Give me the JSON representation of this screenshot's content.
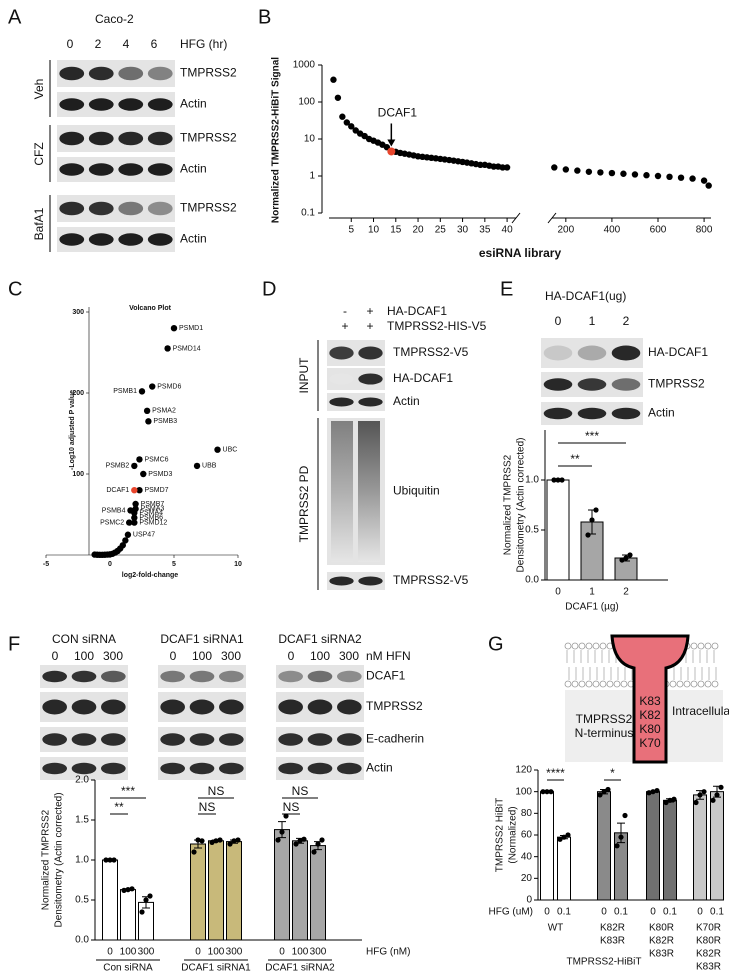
{
  "panel_letters": [
    "A",
    "B",
    "C",
    "D",
    "E",
    "F",
    "G"
  ],
  "blots": {
    "A": {
      "cell_line": "Caco-2",
      "treatment": "HFG (hr)",
      "lanes": [
        "0",
        "2",
        "4",
        "6"
      ],
      "groups": [
        {
          "name": "Veh",
          "rows": [
            "TMPRSS2",
            "Actin"
          ]
        },
        {
          "name": "CFZ",
          "rows": [
            "TMPRSS2",
            "Actin"
          ]
        },
        {
          "name": "BafA1",
          "rows": [
            "TMPRSS2",
            "Actin"
          ]
        }
      ]
    },
    "D": {
      "header": [
        {
          "label": "HA-DCAF1",
          "lanes": [
            "-",
            "+"
          ]
        },
        {
          "label": "TMPRSS2-HIS-V5",
          "lanes": [
            "+",
            "+"
          ]
        }
      ],
      "sections": [
        {
          "name": "INPUT",
          "rows": [
            "TMPRSS2-V5",
            "HA-DCAF1",
            "Actin"
          ]
        },
        {
          "name": "TMPRSS2 PD",
          "rows": [
            "Ubiquitin",
            "TMPRSS2-V5"
          ]
        }
      ]
    },
    "E": {
      "title": "HA-DCAF1(ug)",
      "lanes": [
        "0",
        "1",
        "2"
      ],
      "rows": [
        "HA-DCAF1",
        "TMPRSS2",
        "Actin"
      ]
    },
    "F": {
      "groups": [
        "CON siRNA",
        "DCAF1 siRNA1",
        "DCAF1 siRNA2"
      ],
      "lanes": [
        [
          "0",
          "100",
          "300"
        ],
        [
          "0",
          "100",
          "300"
        ],
        [
          "0",
          "100",
          "300"
        ]
      ],
      "unit": "nM HFN",
      "rows": [
        "DCAF1",
        "TMPRSS2",
        "E-cadherin",
        "Actin"
      ]
    }
  },
  "diagram": {
    "residues": [
      "K83",
      "K82",
      "K80",
      "K70"
    ],
    "intracellular": "Intracellular",
    "n_terminus": [
      "TMPRSS2",
      "N-terminus"
    ]
  },
  "chart_data": [
    {
      "type": "scatter",
      "ylabel": "Normalized TMPRSS2-HiBiT Signal",
      "xlabel": "esiRNA library",
      "log_y": true,
      "ylim": [
        0.1,
        1000
      ],
      "yticks": [
        0.1,
        1,
        10,
        100,
        1000
      ],
      "xlim_segments": [
        [
          0,
          42
        ],
        [
          140,
          830
        ]
      ],
      "xticks": [
        5,
        10,
        15,
        20,
        25,
        30,
        35,
        40,
        200,
        400,
        600,
        800
      ],
      "series": [
        {
          "color": "#000000",
          "x": [
            1,
            2,
            3,
            4,
            5,
            6,
            7,
            8,
            9,
            10,
            11,
            12,
            13,
            15,
            16,
            17,
            18,
            19,
            20,
            21,
            22,
            23,
            24,
            25,
            26,
            27,
            28,
            29,
            30,
            31,
            32,
            33,
            34,
            35,
            36,
            37,
            38,
            39,
            40,
            150,
            200,
            250,
            300,
            350,
            400,
            450,
            500,
            550,
            600,
            650,
            700,
            750,
            800,
            820
          ],
          "values": [
            400,
            130,
            40,
            28,
            22,
            17,
            14,
            12,
            10,
            9,
            8,
            7,
            6,
            4.5,
            4.2,
            4,
            3.8,
            3.6,
            3.4,
            3.3,
            3.2,
            3.1,
            3,
            2.9,
            2.8,
            2.7,
            2.6,
            2.5,
            2.4,
            2.3,
            2.2,
            2.1,
            2,
            2,
            1.9,
            1.8,
            1.8,
            1.7,
            1.7,
            1.7,
            1.5,
            1.4,
            1.3,
            1.25,
            1.2,
            1.15,
            1.1,
            1.05,
            1,
            0.95,
            0.9,
            0.85,
            0.75,
            0.55
          ]
        },
        {
          "name": "DCAF1",
          "color": "#e8452c",
          "x": [
            14
          ],
          "values": [
            4.6
          ]
        }
      ]
    },
    {
      "type": "volcano",
      "title": "Volcano Plot",
      "ylabel": "-Log10 adjusted P value",
      "xlabel": "log2-fold-change",
      "xlim": [
        -5,
        10
      ],
      "xticks": [
        -5,
        0,
        5,
        10
      ],
      "ylim": [
        0,
        300
      ],
      "yticks": [
        100,
        200,
        300
      ],
      "series": [
        {
          "color": "#000000",
          "x": [
            5.0,
            4.5,
            3.3,
            2.5,
            2.9,
            3.0,
            8.4,
            2.3,
            6.8,
            1.9,
            2.6,
            2.3,
            2.0,
            2.0,
            1.9,
            1.6,
            1.9,
            1.5,
            1.9,
            1.4,
            -1.2,
            -1.0,
            -0.8,
            -0.6,
            -0.4,
            -0.2,
            0,
            0.2,
            0.4,
            0.6,
            0.8,
            1.0,
            1.2
          ],
          "values": [
            280,
            255,
            208,
            202,
            178,
            165,
            130,
            118,
            110,
            110,
            100,
            80,
            63,
            57,
            52,
            55,
            46,
            40,
            40,
            25,
            0.5,
            0.3,
            0.2,
            0.2,
            0.3,
            0.5,
            0.8,
            1.5,
            3,
            5,
            8,
            12,
            18
          ],
          "labels": [
            "PSMD1",
            "PSMD14",
            "PSMD6",
            "PSMB1",
            "PSMA2",
            "PSMB3",
            "UBC",
            "PSMC6",
            "UBB",
            "PSMB2",
            "PSMD3",
            "PSMD7",
            "PSMB7",
            "PSMA3",
            "PSMA4",
            "PSMB4",
            "PSMB6",
            "PSMC2",
            "PSMD12",
            "USP47",
            null,
            null,
            null,
            null,
            null,
            null,
            null,
            null,
            null,
            null,
            null,
            null,
            null
          ]
        },
        {
          "name": "DCAF1",
          "color": "#e8452c",
          "x": [
            1.9
          ],
          "values": [
            80
          ]
        }
      ]
    },
    {
      "type": "bar",
      "ylabel": [
        "Normalized TMPRSS2",
        "Densitometry (Actin corrected)"
      ],
      "xlabel": "DCAF1 (µg)",
      "ylim": [
        0,
        1.5
      ],
      "yticks": [
        {
          "value": 0,
          "label": "0.0"
        },
        0.5,
        {
          "value": 1,
          "label": "1.0"
        }
      ],
      "categories": [
        "0",
        "1",
        "2"
      ],
      "series": [
        {
          "colors": [
            "#ffffff",
            "#a6a6a6",
            "#a6a6a6"
          ],
          "values": [
            1,
            0.58,
            0.22
          ],
          "errors": [
            0,
            0.12,
            0.03
          ],
          "points": [
            [
              1,
              1,
              1
            ],
            [
              0.45,
              0.6,
              0.7
            ],
            [
              0.2,
              0.22,
              0.25
            ]
          ]
        }
      ],
      "significance": [
        "**",
        "***"
      ]
    },
    {
      "type": "bar",
      "ylabel": [
        "Normalized TMPRSS2",
        "Densitometry (Actin corrected)"
      ],
      "xlabel": "HFG (nM)",
      "ylim": [
        0,
        2
      ],
      "yticks": [
        {
          "value": 0,
          "label": "0.0"
        },
        0.5,
        {
          "value": 1,
          "label": "1.0"
        },
        1.5,
        {
          "value": 2,
          "label": "2.0"
        }
      ],
      "categories": [
        "0",
        "100",
        "300"
      ],
      "series": [
        {
          "name": [
            "Con siRNA"
          ],
          "color": "#ffffff",
          "values": [
            1,
            0.63,
            0.47
          ],
          "errors": [
            0,
            0.01,
            0.07
          ],
          "points": [
            [
              1,
              1,
              1
            ],
            [
              0.62,
              0.63,
              0.64
            ],
            [
              0.35,
              0.5,
              0.55
            ]
          ]
        },
        {
          "name": [
            "DCAF1 siRNA1"
          ],
          "color": "#c8b97a",
          "values": [
            1.2,
            1.24,
            1.23
          ],
          "errors": [
            0.05,
            0.01,
            0.02
          ],
          "points": [
            [
              1.1,
              1.25,
              1.24
            ],
            [
              1.22,
              1.24,
              1.25
            ],
            [
              1.2,
              1.24,
              1.25
            ]
          ]
        },
        {
          "name": [
            "DCAF1 siRNA2"
          ],
          "color": "#a6a6a6",
          "values": [
            1.38,
            1.24,
            1.18
          ],
          "errors": [
            0.1,
            0.03,
            0.05
          ],
          "points": [
            [
              1.25,
              1.35,
              1.55
            ],
            [
              1.2,
              1.24,
              1.26
            ],
            [
              1.1,
              1.2,
              1.25
            ]
          ]
        }
      ],
      "significance": [
        "***",
        "**",
        "NS",
        "NS",
        "NS",
        "NS"
      ]
    },
    {
      "type": "bar",
      "ylabel": [
        "TMPRSS2 HiBiT",
        "(Normalized)"
      ],
      "xlabel": "HFG (uM)",
      "group_label": "TMPRSS2-HiBiT",
      "ylim": [
        0,
        120
      ],
      "yticks": [
        0,
        20,
        40,
        60,
        80,
        100,
        120
      ],
      "categories": [
        "0",
        "0.1"
      ],
      "series": [
        {
          "name": [
            "WT"
          ],
          "color": "#ffffff",
          "values": [
            100,
            58
          ],
          "errors": [
            0.5,
            1.5
          ],
          "points": [
            [
              100,
              100,
              100
            ],
            [
              56,
              58,
              60
            ]
          ]
        },
        {
          "name": [
            "K82R",
            "K83R"
          ],
          "color": "#8a8a8a",
          "values": [
            100,
            62
          ],
          "errors": [
            2,
            9
          ],
          "points": [
            [
              97,
              100,
              102
            ],
            [
              50,
              58,
              78
            ]
          ]
        },
        {
          "name": [
            "K80R",
            "K82R",
            "K83R"
          ],
          "color": "#707070",
          "values": [
            100,
            92
          ],
          "errors": [
            0.5,
            1.5
          ],
          "points": [
            [
              99,
              100,
              101
            ],
            [
              90,
              92,
              93
            ]
          ]
        },
        {
          "name": [
            "K70R",
            "K80R",
            "K82R",
            "K83R"
          ],
          "color": "#c9c9c9",
          "values": [
            97,
            100
          ],
          "errors": [
            4,
            5
          ],
          "points": [
            [
              90,
              97,
              100
            ],
            [
              92,
              97,
              104
            ]
          ]
        }
      ],
      "significance": [
        "****",
        "*"
      ]
    }
  ]
}
